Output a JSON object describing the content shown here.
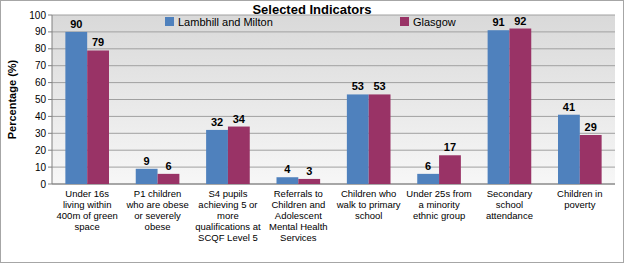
{
  "chart_data": {
    "type": "bar",
    "title": "Selected Indicators",
    "y_label": "Percentage (%)",
    "categories": [
      "Under 16s living within 400m of green space",
      "P1 children who are obese or severely obese",
      "S4 pupils achieving 5 or more qualifications at SCQF Level 5",
      "Referrals to Children and Adolescent Mental Health Services",
      "Children who walk to primary school",
      "Under 25s from a minority ethnic group",
      "Secondary school attendance",
      "Children in poverty"
    ],
    "series": [
      {
        "name": "Lambhill and Milton",
        "color": "#4f81bd",
        "values": [
          90,
          9,
          32,
          4,
          53,
          6,
          91,
          41
        ]
      },
      {
        "name": "Glasgow",
        "color": "#993366",
        "values": [
          79,
          6,
          34,
          3,
          53,
          17,
          92,
          29
        ]
      }
    ],
    "ylim": [
      0,
      100
    ],
    "yticks": [
      0,
      10,
      20,
      30,
      40,
      50,
      60,
      70,
      80,
      90,
      100
    ],
    "grid": true,
    "legend": "top",
    "data_labels": true
  }
}
